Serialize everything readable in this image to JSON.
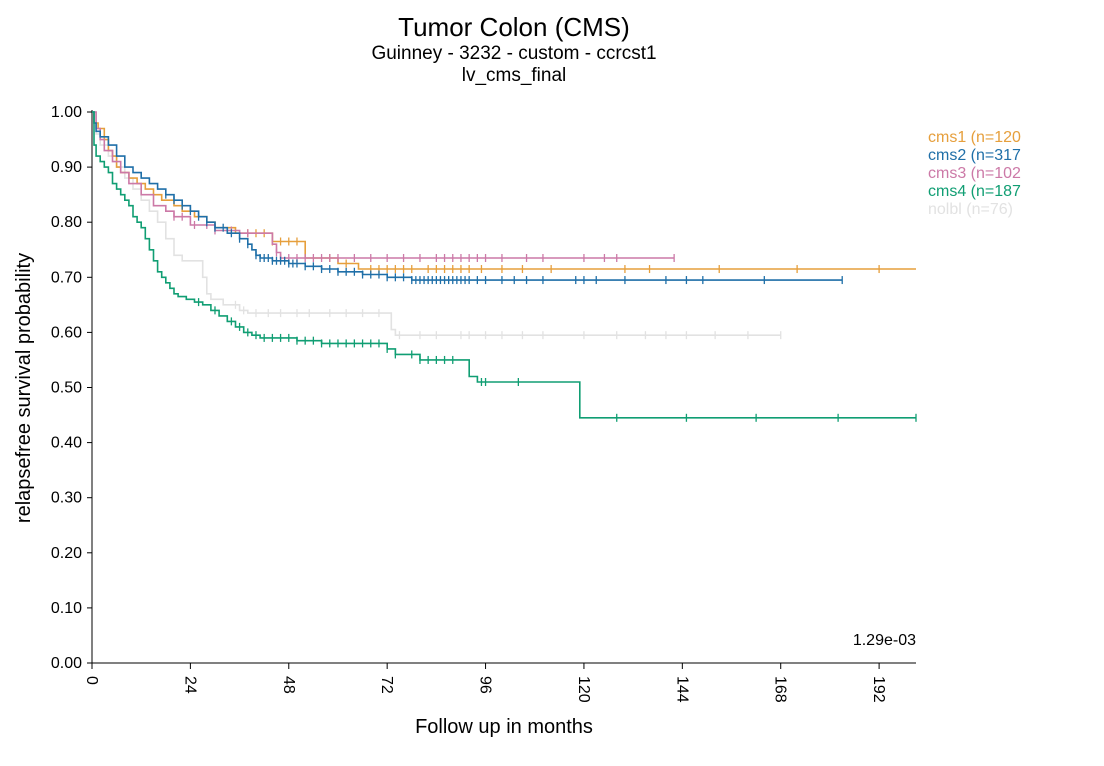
{
  "chart_data": {
    "type": "line",
    "title": "Tumor Colon (CMS)",
    "subtitle_lines": [
      "Guinney - 3232 - custom - ccrcst1",
      "lv_cms_final"
    ],
    "xlabel": "Follow up in months",
    "ylabel": "relapsefree survival probability",
    "xlim": [
      0,
      201
    ],
    "ylim": [
      0,
      1
    ],
    "x_ticks": [
      0,
      24,
      48,
      72,
      96,
      120,
      144,
      168,
      192
    ],
    "x_tick_labels": [
      "0",
      "24",
      "48",
      "72",
      "96",
      "120",
      "144",
      "168",
      "192"
    ],
    "y_ticks": [
      0,
      0.1,
      0.2,
      0.3,
      0.4,
      0.5,
      0.6,
      0.7,
      0.8,
      0.9,
      1.0
    ],
    "y_tick_labels": [
      "0.00",
      "0.10",
      "0.20",
      "0.30",
      "0.40",
      "0.50",
      "0.60",
      "0.70",
      "0.80",
      "0.90",
      "1.00"
    ],
    "legend_position": "top-right",
    "annotation": "1.29e-03",
    "series": [
      {
        "name": "cms1 (n=120",
        "color": "#E69F3C",
        "steps": [
          [
            0,
            1.0
          ],
          [
            0.5,
            0.98
          ],
          [
            1.5,
            0.97
          ],
          [
            3,
            0.95
          ],
          [
            4,
            0.93
          ],
          [
            5,
            0.92
          ],
          [
            6,
            0.9
          ],
          [
            7,
            0.89
          ],
          [
            9,
            0.88
          ],
          [
            11,
            0.87
          ],
          [
            13,
            0.86
          ],
          [
            15,
            0.85
          ],
          [
            17,
            0.84
          ],
          [
            20,
            0.83
          ],
          [
            22,
            0.82
          ],
          [
            25,
            0.81
          ],
          [
            28,
            0.8
          ],
          [
            30,
            0.79
          ],
          [
            35,
            0.78
          ],
          [
            44,
            0.765
          ],
          [
            52,
            0.735
          ],
          [
            60,
            0.725
          ],
          [
            65,
            0.715
          ],
          [
            201,
            0.715
          ]
        ],
        "censors": [
          38,
          40,
          42,
          44,
          46,
          48,
          50,
          58,
          62,
          68,
          70,
          72,
          74,
          76,
          78,
          82,
          84,
          86,
          88,
          90,
          92,
          95,
          100,
          105,
          112,
          130,
          136,
          153,
          172,
          192
        ]
      },
      {
        "name": "cms2 (n=317",
        "color": "#1F6FA8",
        "steps": [
          [
            0,
            1.0
          ],
          [
            0.5,
            0.98
          ],
          [
            1,
            0.965
          ],
          [
            2,
            0.955
          ],
          [
            4,
            0.94
          ],
          [
            6,
            0.92
          ],
          [
            8,
            0.9
          ],
          [
            10,
            0.89
          ],
          [
            12,
            0.88
          ],
          [
            14,
            0.87
          ],
          [
            16,
            0.86
          ],
          [
            18,
            0.85
          ],
          [
            20,
            0.84
          ],
          [
            22,
            0.83
          ],
          [
            24,
            0.82
          ],
          [
            26,
            0.81
          ],
          [
            28,
            0.8
          ],
          [
            30,
            0.79
          ],
          [
            33,
            0.78
          ],
          [
            36,
            0.77
          ],
          [
            38,
            0.76
          ],
          [
            39,
            0.75
          ],
          [
            40,
            0.74
          ],
          [
            41,
            0.735
          ],
          [
            44,
            0.73
          ],
          [
            48,
            0.725
          ],
          [
            52,
            0.72
          ],
          [
            56,
            0.715
          ],
          [
            60,
            0.71
          ],
          [
            66,
            0.705
          ],
          [
            72,
            0.7
          ],
          [
            78,
            0.695
          ],
          [
            183,
            0.695
          ]
        ],
        "censors": [
          18,
          20,
          22,
          24,
          26,
          28,
          30,
          32,
          34,
          36,
          38,
          40,
          41,
          42,
          43,
          44,
          45,
          46,
          47,
          48,
          49,
          50,
          52,
          54,
          56,
          58,
          60,
          62,
          64,
          66,
          68,
          70,
          72,
          74,
          76,
          78,
          79,
          80,
          81,
          82,
          83,
          84,
          85,
          86,
          87,
          88,
          89,
          90,
          91,
          92,
          94,
          96,
          100,
          103,
          106,
          110,
          118,
          120,
          123,
          130,
          140,
          145,
          149,
          164,
          183
        ]
      },
      {
        "name": "cms3 (n=102",
        "color": "#CC79A7",
        "steps": [
          [
            0,
            1.0
          ],
          [
            1,
            0.97
          ],
          [
            2,
            0.95
          ],
          [
            3,
            0.93
          ],
          [
            5,
            0.91
          ],
          [
            7,
            0.89
          ],
          [
            9,
            0.87
          ],
          [
            12,
            0.85
          ],
          [
            15,
            0.83
          ],
          [
            18,
            0.82
          ],
          [
            20,
            0.81
          ],
          [
            24,
            0.795
          ],
          [
            30,
            0.785
          ],
          [
            36,
            0.78
          ],
          [
            44,
            0.76
          ],
          [
            45,
            0.745
          ],
          [
            46,
            0.735
          ],
          [
            55,
            0.735
          ],
          [
            142,
            0.735
          ]
        ],
        "censors": [
          20,
          22,
          25,
          28,
          30,
          34,
          38,
          45,
          46,
          48,
          50,
          52,
          54,
          56,
          58,
          60,
          64,
          68,
          72,
          76,
          80,
          84,
          86,
          88,
          90,
          92,
          94,
          96,
          100,
          106,
          110,
          120,
          125,
          128,
          142
        ]
      },
      {
        "name": "cms4 (n=187",
        "color": "#109E73",
        "steps": [
          [
            0,
            1.0
          ],
          [
            0.5,
            0.94
          ],
          [
            1,
            0.92
          ],
          [
            2,
            0.91
          ],
          [
            3,
            0.9
          ],
          [
            4,
            0.89
          ],
          [
            5,
            0.87
          ],
          [
            6,
            0.86
          ],
          [
            7,
            0.85
          ],
          [
            8,
            0.84
          ],
          [
            9,
            0.83
          ],
          [
            10,
            0.81
          ],
          [
            11,
            0.8
          ],
          [
            12,
            0.79
          ],
          [
            13,
            0.77
          ],
          [
            14,
            0.75
          ],
          [
            15,
            0.73
          ],
          [
            16,
            0.71
          ],
          [
            17,
            0.7
          ],
          [
            18,
            0.69
          ],
          [
            19,
            0.68
          ],
          [
            20,
            0.67
          ],
          [
            21,
            0.665
          ],
          [
            23,
            0.66
          ],
          [
            25,
            0.655
          ],
          [
            27,
            0.65
          ],
          [
            29,
            0.64
          ],
          [
            31,
            0.63
          ],
          [
            33,
            0.62
          ],
          [
            35,
            0.61
          ],
          [
            37,
            0.6
          ],
          [
            39,
            0.595
          ],
          [
            41,
            0.59
          ],
          [
            50,
            0.585
          ],
          [
            56,
            0.58
          ],
          [
            72,
            0.57
          ],
          [
            74,
            0.56
          ],
          [
            80,
            0.55
          ],
          [
            92,
            0.52
          ],
          [
            94,
            0.51
          ],
          [
            119,
            0.445
          ],
          [
            201,
            0.445
          ]
        ],
        "censors": [
          26,
          30,
          34,
          36,
          38,
          40,
          42,
          44,
          46,
          48,
          50,
          52,
          54,
          56,
          58,
          60,
          62,
          64,
          66,
          68,
          70,
          72,
          74,
          78,
          80,
          82,
          84,
          86,
          88,
          95,
          96,
          104,
          128,
          145,
          162,
          182,
          201
        ]
      },
      {
        "name": "nolbl (n=76)",
        "color": "#E2E2E2",
        "steps": [
          [
            0,
            1.0
          ],
          [
            1,
            0.96
          ],
          [
            2,
            0.94
          ],
          [
            4,
            0.92
          ],
          [
            6,
            0.9
          ],
          [
            8,
            0.88
          ],
          [
            10,
            0.86
          ],
          [
            12,
            0.84
          ],
          [
            14,
            0.82
          ],
          [
            16,
            0.8
          ],
          [
            18,
            0.77
          ],
          [
            20,
            0.74
          ],
          [
            22,
            0.73
          ],
          [
            27,
            0.7
          ],
          [
            28,
            0.67
          ],
          [
            29,
            0.66
          ],
          [
            32,
            0.65
          ],
          [
            36,
            0.64
          ],
          [
            38,
            0.635
          ],
          [
            73,
            0.605
          ],
          [
            74,
            0.595
          ],
          [
            168,
            0.595
          ]
        ],
        "censors": [
          35,
          37,
          40,
          43,
          46,
          50,
          53,
          58,
          62,
          66,
          70,
          75,
          80,
          84,
          90,
          92,
          96,
          100,
          105,
          110,
          120,
          128,
          135,
          140,
          145,
          152,
          160,
          168
        ]
      }
    ]
  }
}
